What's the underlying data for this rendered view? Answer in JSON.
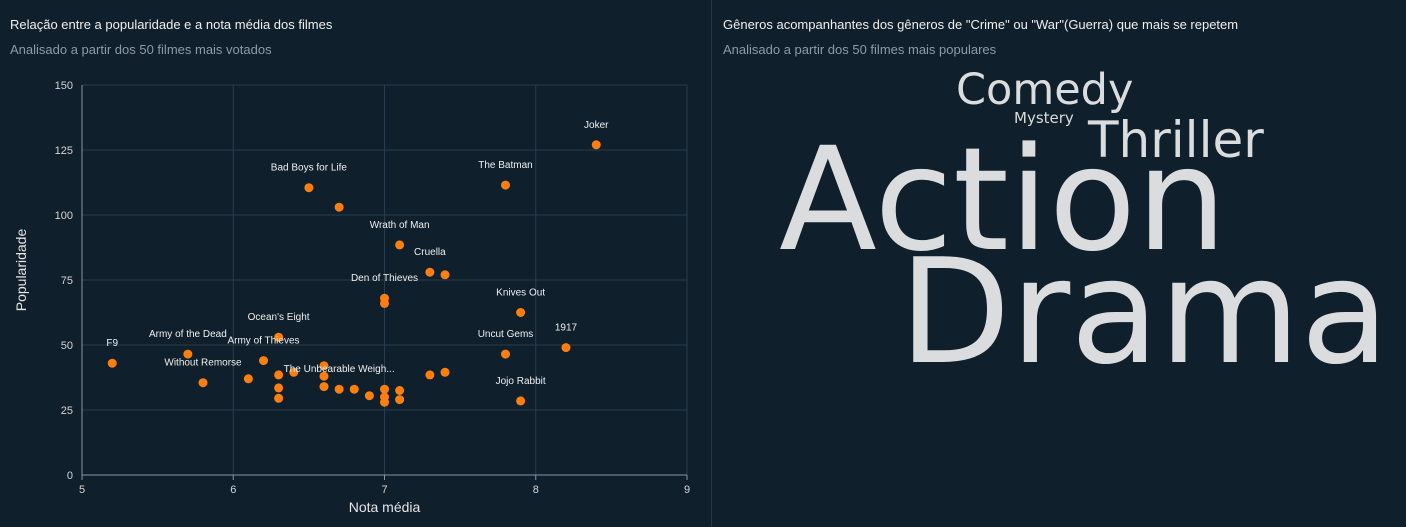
{
  "left_panel": {
    "title": "Relação entre a popularidade e a nota média dos filmes",
    "subtitle": "Analisado a partir dos 50 filmes mais votados"
  },
  "right_panel": {
    "title": "Gêneros acompanhantes dos gêneros de \"Crime\" ou \"War\"(Guerra) que mais se repetem",
    "subtitle": "Analisado a partir dos 50 filmes mais populares"
  },
  "chart_data": {
    "type": "scatter",
    "xlabel": "Nota média",
    "ylabel": "Popularidade",
    "xlim": [
      5,
      9
    ],
    "ylim": [
      0,
      150
    ],
    "xticks": [
      "5",
      "6",
      "7",
      "8",
      "9"
    ],
    "yticks": [
      "0",
      "25",
      "50",
      "75",
      "100",
      "125",
      "150"
    ],
    "grid": true,
    "point_color": "#ff7f0e",
    "points": [
      {
        "x": 8.4,
        "y": 127,
        "label": "Joker"
      },
      {
        "x": 7.8,
        "y": 111.5,
        "label": "The Batman"
      },
      {
        "x": 6.5,
        "y": 110.5,
        "label": "Bad Boys for Life"
      },
      {
        "x": 6.7,
        "y": 103,
        "label": ""
      },
      {
        "x": 7.1,
        "y": 88.5,
        "label": "Wrath of Man"
      },
      {
        "x": 7.3,
        "y": 78,
        "label": "Cruella"
      },
      {
        "x": 7.4,
        "y": 77,
        "label": ""
      },
      {
        "x": 7.0,
        "y": 68,
        "label": "Den of Thieves"
      },
      {
        "x": 7.0,
        "y": 66,
        "label": ""
      },
      {
        "x": 7.9,
        "y": 62.5,
        "label": "Knives Out"
      },
      {
        "x": 6.3,
        "y": 53,
        "label": "Ocean's Eight"
      },
      {
        "x": 8.2,
        "y": 49,
        "label": "1917"
      },
      {
        "x": 5.7,
        "y": 46.5,
        "label": "Army of the Dead"
      },
      {
        "x": 7.8,
        "y": 46.5,
        "label": "Uncut Gems"
      },
      {
        "x": 6.2,
        "y": 44,
        "label": "Army of Thieves"
      },
      {
        "x": 5.2,
        "y": 43,
        "label": "F9"
      },
      {
        "x": 6.6,
        "y": 42,
        "label": ""
      },
      {
        "x": 6.4,
        "y": 39.5,
        "label": ""
      },
      {
        "x": 7.4,
        "y": 39.5,
        "label": ""
      },
      {
        "x": 6.3,
        "y": 38.5,
        "label": ""
      },
      {
        "x": 6.6,
        "y": 38,
        "label": ""
      },
      {
        "x": 7.3,
        "y": 38.5,
        "label": ""
      },
      {
        "x": 6.1,
        "y": 37,
        "label": ""
      },
      {
        "x": 5.8,
        "y": 35.5,
        "label": "Without Remorse"
      },
      {
        "x": 6.6,
        "y": 34,
        "label": ""
      },
      {
        "x": 6.3,
        "y": 33.5,
        "label": ""
      },
      {
        "x": 6.7,
        "y": 33,
        "label": "The Unbearable Weigh..."
      },
      {
        "x": 6.8,
        "y": 33,
        "label": ""
      },
      {
        "x": 7.0,
        "y": 33,
        "label": ""
      },
      {
        "x": 7.1,
        "y": 32.5,
        "label": ""
      },
      {
        "x": 6.9,
        "y": 30.5,
        "label": ""
      },
      {
        "x": 7.0,
        "y": 30,
        "label": ""
      },
      {
        "x": 6.3,
        "y": 29.5,
        "label": ""
      },
      {
        "x": 7.1,
        "y": 29,
        "label": ""
      },
      {
        "x": 7.9,
        "y": 28.5,
        "label": "Jojo Rabbit"
      },
      {
        "x": 7.0,
        "y": 28,
        "label": ""
      }
    ]
  },
  "word_cloud": {
    "words": [
      {
        "text": "Comedy",
        "key": "comedy"
      },
      {
        "text": "Mystery",
        "key": "mystery"
      },
      {
        "text": "Thriller",
        "key": "thriller"
      },
      {
        "text": "Action",
        "key": "action"
      },
      {
        "text": "Drama",
        "key": "drama"
      }
    ]
  }
}
